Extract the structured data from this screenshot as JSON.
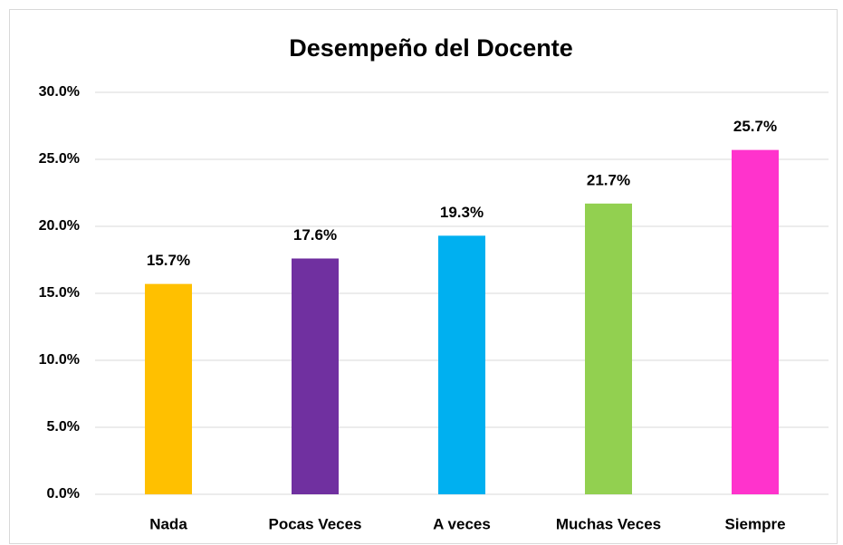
{
  "chart_data": {
    "type": "bar",
    "title": "Desempeño del Docente",
    "categories": [
      "Nada",
      "Pocas Veces",
      "A veces",
      "Muchas Veces",
      "Siempre"
    ],
    "values": [
      15.7,
      17.6,
      19.3,
      21.7,
      25.7
    ],
    "value_labels": [
      "15.7%",
      "17.6%",
      "19.3%",
      "21.7%",
      "25.7%"
    ],
    "colors": [
      "#ffc000",
      "#7030a0",
      "#00b0f0",
      "#92d050",
      "#ff33cc"
    ],
    "ylim": [
      0,
      30
    ],
    "yticks": [
      {
        "value": 0,
        "label": "0.0%"
      },
      {
        "value": 5,
        "label": "5.0%"
      },
      {
        "value": 10,
        "label": "10.0%"
      },
      {
        "value": 15,
        "label": "15.0%"
      },
      {
        "value": 20,
        "label": "20.0%"
      },
      {
        "value": 25,
        "label": "25.0%"
      },
      {
        "value": 30,
        "label": "30.0%"
      }
    ],
    "grid": true
  }
}
